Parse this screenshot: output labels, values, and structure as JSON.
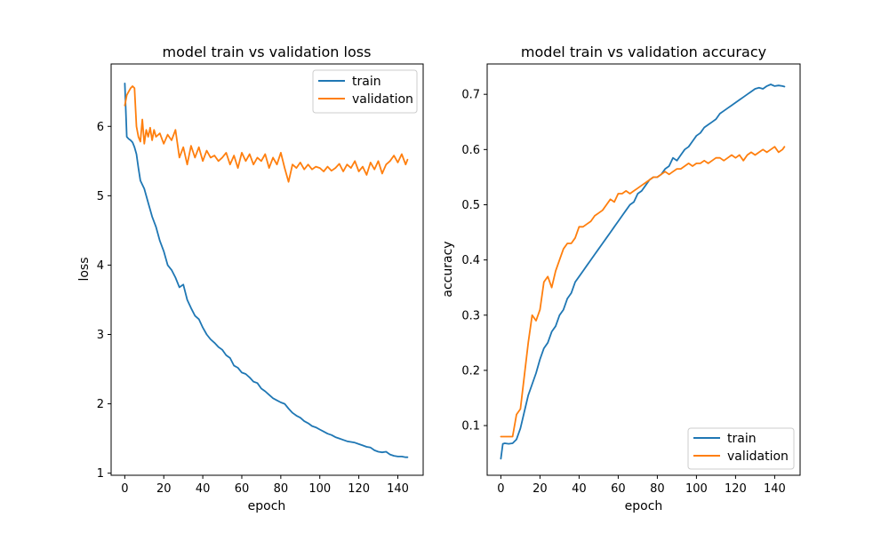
{
  "chart_data": [
    {
      "type": "line",
      "title": "model train vs validation loss",
      "xlabel": "epoch",
      "ylabel": "loss",
      "xlim": [
        -7,
        153
      ],
      "ylim": [
        0.97,
        6.9
      ],
      "xticks": [
        0,
        20,
        40,
        60,
        80,
        100,
        120,
        140
      ],
      "yticks": [
        1,
        2,
        3,
        4,
        5,
        6
      ],
      "legend": "top-right",
      "grid": false,
      "series": [
        {
          "name": "train",
          "color": "#1f77b4",
          "x": [
            0,
            1,
            2,
            3,
            4,
            5,
            6,
            7,
            8,
            10,
            12,
            14,
            16,
            18,
            20,
            22,
            24,
            26,
            28,
            30,
            32,
            34,
            36,
            38,
            40,
            42,
            44,
            46,
            48,
            50,
            52,
            54,
            56,
            58,
            60,
            62,
            64,
            66,
            68,
            70,
            72,
            74,
            76,
            78,
            80,
            82,
            84,
            86,
            88,
            90,
            92,
            94,
            96,
            98,
            100,
            102,
            104,
            106,
            108,
            110,
            112,
            114,
            116,
            118,
            120,
            122,
            124,
            126,
            128,
            130,
            132,
            134,
            136,
            138,
            140,
            142,
            144,
            145
          ],
          "values": [
            6.62,
            5.85,
            5.82,
            5.8,
            5.77,
            5.7,
            5.6,
            5.4,
            5.22,
            5.1,
            4.9,
            4.7,
            4.55,
            4.35,
            4.2,
            4.0,
            3.93,
            3.82,
            3.68,
            3.72,
            3.5,
            3.38,
            3.27,
            3.22,
            3.1,
            3.0,
            2.93,
            2.88,
            2.82,
            2.78,
            2.7,
            2.66,
            2.55,
            2.52,
            2.45,
            2.43,
            2.38,
            2.32,
            2.3,
            2.22,
            2.18,
            2.13,
            2.08,
            2.05,
            2.02,
            2.0,
            1.93,
            1.87,
            1.83,
            1.8,
            1.75,
            1.72,
            1.68,
            1.66,
            1.63,
            1.6,
            1.57,
            1.55,
            1.52,
            1.5,
            1.48,
            1.46,
            1.45,
            1.44,
            1.42,
            1.4,
            1.38,
            1.37,
            1.33,
            1.31,
            1.3,
            1.31,
            1.27,
            1.25,
            1.24,
            1.24,
            1.23,
            1.23
          ]
        },
        {
          "name": "validation",
          "color": "#ff7f0e",
          "x": [
            0,
            1,
            2,
            3,
            4,
            5,
            6,
            7,
            8,
            9,
            10,
            11,
            12,
            13,
            14,
            15,
            16,
            18,
            20,
            22,
            24,
            26,
            28,
            30,
            32,
            34,
            36,
            38,
            40,
            42,
            44,
            46,
            48,
            50,
            52,
            54,
            56,
            58,
            60,
            62,
            64,
            66,
            68,
            70,
            72,
            74,
            76,
            78,
            80,
            82,
            84,
            86,
            88,
            90,
            92,
            94,
            96,
            98,
            100,
            102,
            104,
            106,
            108,
            110,
            112,
            114,
            116,
            118,
            120,
            122,
            124,
            126,
            128,
            130,
            132,
            134,
            136,
            138,
            140,
            142,
            144,
            145
          ],
          "values": [
            6.3,
            6.45,
            6.5,
            6.55,
            6.58,
            6.55,
            6.0,
            5.85,
            5.78,
            6.1,
            5.75,
            5.95,
            5.85,
            5.98,
            5.8,
            5.95,
            5.85,
            5.9,
            5.75,
            5.88,
            5.8,
            5.95,
            5.55,
            5.7,
            5.45,
            5.72,
            5.55,
            5.7,
            5.5,
            5.65,
            5.55,
            5.58,
            5.5,
            5.55,
            5.62,
            5.45,
            5.58,
            5.4,
            5.62,
            5.5,
            5.6,
            5.45,
            5.55,
            5.5,
            5.6,
            5.4,
            5.55,
            5.45,
            5.62,
            5.4,
            5.2,
            5.45,
            5.4,
            5.48,
            5.38,
            5.45,
            5.38,
            5.42,
            5.4,
            5.35,
            5.42,
            5.36,
            5.4,
            5.46,
            5.35,
            5.45,
            5.4,
            5.5,
            5.35,
            5.42,
            5.3,
            5.48,
            5.38,
            5.5,
            5.32,
            5.45,
            5.5,
            5.58,
            5.48,
            5.6,
            5.45,
            5.52
          ]
        }
      ]
    },
    {
      "type": "line",
      "title": "model train vs validation accuracy",
      "xlabel": "epoch",
      "ylabel": "accuracy",
      "xlim": [
        -7,
        153
      ],
      "ylim": [
        0.01,
        0.755
      ],
      "xticks": [
        0,
        20,
        40,
        60,
        80,
        100,
        120,
        140
      ],
      "yticks": [
        0.1,
        0.2,
        0.3,
        0.4,
        0.5,
        0.6,
        0.7
      ],
      "legend": "bottom-right",
      "grid": false,
      "series": [
        {
          "name": "train",
          "color": "#1f77b4",
          "x": [
            0,
            1,
            2,
            4,
            6,
            8,
            10,
            12,
            14,
            16,
            18,
            20,
            22,
            24,
            26,
            28,
            30,
            32,
            34,
            36,
            38,
            40,
            42,
            44,
            46,
            48,
            50,
            52,
            54,
            56,
            58,
            60,
            62,
            64,
            66,
            68,
            70,
            72,
            74,
            76,
            78,
            80,
            82,
            84,
            86,
            88,
            90,
            92,
            94,
            96,
            98,
            100,
            102,
            104,
            106,
            108,
            110,
            112,
            114,
            116,
            118,
            120,
            122,
            124,
            126,
            128,
            130,
            132,
            134,
            136,
            138,
            140,
            142,
            144,
            145
          ],
          "values": [
            0.04,
            0.067,
            0.068,
            0.067,
            0.068,
            0.075,
            0.095,
            0.125,
            0.155,
            0.175,
            0.195,
            0.22,
            0.24,
            0.25,
            0.27,
            0.28,
            0.3,
            0.31,
            0.33,
            0.34,
            0.36,
            0.37,
            0.38,
            0.39,
            0.4,
            0.41,
            0.42,
            0.43,
            0.44,
            0.45,
            0.46,
            0.47,
            0.48,
            0.49,
            0.5,
            0.505,
            0.52,
            0.525,
            0.535,
            0.545,
            0.55,
            0.55,
            0.555,
            0.565,
            0.57,
            0.585,
            0.58,
            0.59,
            0.6,
            0.605,
            0.615,
            0.625,
            0.63,
            0.64,
            0.645,
            0.65,
            0.655,
            0.665,
            0.67,
            0.675,
            0.68,
            0.685,
            0.69,
            0.695,
            0.7,
            0.705,
            0.71,
            0.712,
            0.71,
            0.715,
            0.718,
            0.715,
            0.716,
            0.715,
            0.714
          ]
        },
        {
          "name": "validation",
          "color": "#ff7f0e",
          "x": [
            0,
            2,
            4,
            6,
            8,
            10,
            12,
            14,
            16,
            18,
            20,
            22,
            24,
            26,
            28,
            30,
            32,
            34,
            36,
            38,
            40,
            42,
            44,
            46,
            48,
            50,
            52,
            54,
            56,
            58,
            60,
            62,
            64,
            66,
            68,
            70,
            72,
            74,
            76,
            78,
            80,
            82,
            84,
            86,
            88,
            90,
            92,
            94,
            96,
            98,
            100,
            102,
            104,
            106,
            108,
            110,
            112,
            114,
            116,
            118,
            120,
            122,
            124,
            126,
            128,
            130,
            132,
            134,
            136,
            138,
            140,
            142,
            144,
            145
          ],
          "values": [
            0.08,
            0.08,
            0.08,
            0.08,
            0.12,
            0.13,
            0.19,
            0.25,
            0.3,
            0.29,
            0.31,
            0.36,
            0.37,
            0.35,
            0.38,
            0.4,
            0.42,
            0.43,
            0.43,
            0.44,
            0.46,
            0.46,
            0.465,
            0.47,
            0.48,
            0.485,
            0.49,
            0.5,
            0.51,
            0.505,
            0.52,
            0.52,
            0.525,
            0.52,
            0.525,
            0.53,
            0.535,
            0.54,
            0.545,
            0.55,
            0.55,
            0.555,
            0.56,
            0.555,
            0.56,
            0.565,
            0.565,
            0.57,
            0.575,
            0.57,
            0.575,
            0.575,
            0.58,
            0.575,
            0.58,
            0.585,
            0.585,
            0.58,
            0.585,
            0.59,
            0.585,
            0.59,
            0.58,
            0.59,
            0.595,
            0.59,
            0.595,
            0.6,
            0.595,
            0.6,
            0.605,
            0.595,
            0.6,
            0.605
          ]
        }
      ]
    }
  ]
}
